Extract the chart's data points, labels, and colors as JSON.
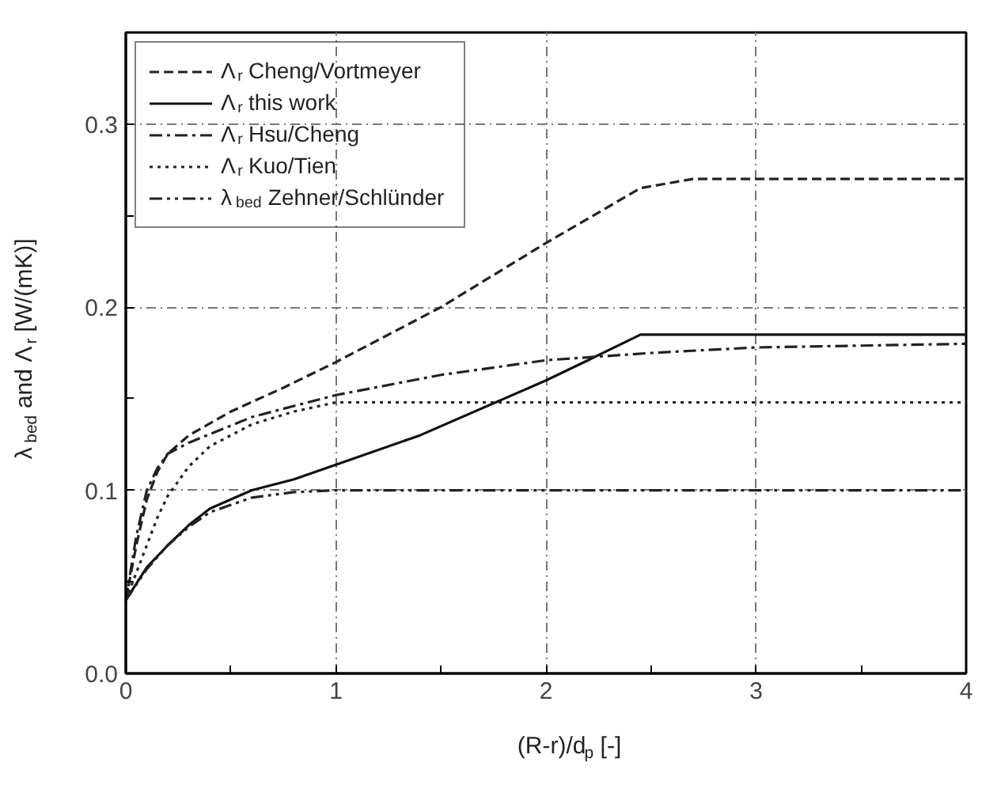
{
  "chart_data": {
    "type": "line",
    "xlabel": "(R-r)/d$_{p}$ [-]",
    "ylabel": "λ$_{bed}$ and Λ$_{r}$ [W/(mK)]",
    "xlim": [
      0,
      4
    ],
    "ylim": [
      0,
      0.35
    ],
    "xticks": [
      0,
      {
        "value": 0.5,
        "label": null
      },
      1,
      {
        "value": 1.5,
        "label": null
      },
      2,
      {
        "value": 2.5,
        "label": null
      },
      3,
      {
        "value": 3.5,
        "label": null
      },
      4
    ],
    "yticks": [
      {
        "value": 0,
        "label": "0.0"
      },
      {
        "value": 0.05,
        "label": null
      },
      0.1,
      {
        "value": 0.15,
        "label": null
      },
      0.2,
      {
        "value": 0.25,
        "label": null
      },
      0.3
    ],
    "grid": true,
    "legend": "top left",
    "marker": "none",
    "series": [
      {
        "name": "Λ$_{r}$ Cheng/Vortmeyer",
        "color": "#222222",
        "line_style": "dashed",
        "x": [
          0,
          0.05,
          0.1,
          0.15,
          0.2,
          0.3,
          0.5,
          0.75,
          1,
          1.5,
          2,
          2.45,
          2.7,
          3,
          4
        ],
        "values": [
          0.04,
          0.07,
          0.095,
          0.11,
          0.12,
          0.13,
          0.143,
          0.156,
          0.17,
          0.2,
          0.235,
          0.265,
          0.27,
          0.27,
          0.27
        ]
      },
      {
        "name": "Λ$_{r}$ this work",
        "color": "#111111",
        "line_style": "solid",
        "x": [
          0,
          0.1,
          0.2,
          0.3,
          0.4,
          0.6,
          0.8,
          1,
          1.4,
          1.8,
          2,
          2.2,
          2.45,
          3,
          4
        ],
        "values": [
          0.04,
          0.058,
          0.07,
          0.081,
          0.09,
          0.1,
          0.106,
          0.114,
          0.13,
          0.15,
          0.16,
          0.171,
          0.185,
          0.185,
          0.185
        ]
      },
      {
        "name": "Λ$_{r}$ Hsu/Cheng",
        "color": "#222222",
        "line_style": "dashdot",
        "x": [
          0,
          0.05,
          0.1,
          0.15,
          0.2,
          0.3,
          0.6,
          1,
          1.5,
          2,
          2.5,
          3,
          4
        ],
        "values": [
          0.04,
          0.075,
          0.1,
          0.112,
          0.12,
          0.126,
          0.14,
          0.152,
          0.163,
          0.171,
          0.175,
          0.178,
          0.18
        ]
      },
      {
        "name": "Λ$_{r}$ Kuo/Tien",
        "color": "#222222",
        "line_style": "dotted",
        "x": [
          0,
          0.1,
          0.15,
          0.2,
          0.3,
          0.4,
          0.6,
          0.8,
          1,
          2,
          3,
          4
        ],
        "values": [
          0.04,
          0.07,
          0.085,
          0.097,
          0.113,
          0.124,
          0.136,
          0.143,
          0.148,
          0.148,
          0.148,
          0.148
        ]
      },
      {
        "name": "λ$_{bed}$ Zehner/Schlünder",
        "color": "#222222",
        "line_style": "dashdotdot",
        "x": [
          0,
          0.1,
          0.2,
          0.3,
          0.4,
          0.6,
          0.8,
          1,
          2,
          3,
          4
        ],
        "values": [
          0.04,
          0.057,
          0.07,
          0.08,
          0.088,
          0.096,
          0.099,
          0.1,
          0.1,
          0.1,
          0.1
        ]
      }
    ]
  }
}
